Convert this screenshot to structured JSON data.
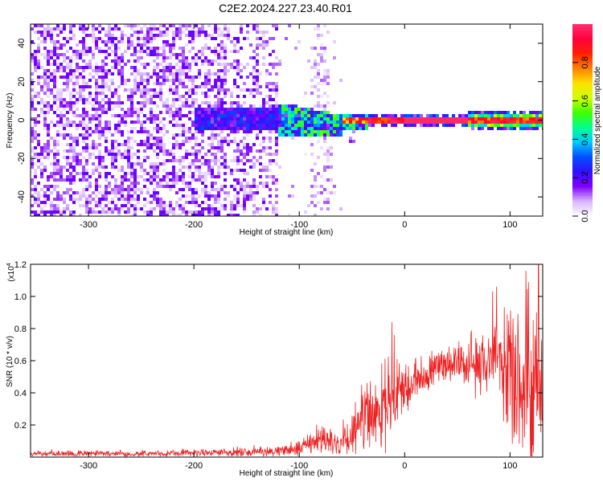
{
  "title": "C2E2.2024.227.23.40.R01",
  "chart_data": [
    {
      "type": "heatmap",
      "title": "C2E2.2024.227.23.40.R01",
      "xlabel": "Height of straight line (km)",
      "ylabel": "Frequency (Hz)",
      "xlim": [
        -355,
        131
      ],
      "ylim": [
        -50,
        50
      ],
      "xticks": [
        -300,
        -200,
        -100,
        0,
        100
      ],
      "xtick_labels": [
        "-300",
        "-200",
        "-100",
        "0",
        "100"
      ],
      "yticks": [
        -40,
        -20,
        0,
        20,
        40
      ],
      "ytick_labels": [
        "-40",
        "-20",
        "0",
        "20",
        "40"
      ],
      "colorbar": {
        "label": "Normalized spectral amplitude",
        "range": [
          0,
          1
        ],
        "ticks": [
          0.0,
          0.2,
          0.4,
          0.6,
          0.8
        ],
        "tick_labels": [
          "0.0",
          "0.2",
          "0.4",
          "0.6",
          "0.8"
        ],
        "colors": [
          "#ffffff",
          "#d8b4ff",
          "#8000ff",
          "#3010ff",
          "#0050ff",
          "#00c8ff",
          "#00ff90",
          "#40ff00",
          "#d0ff00",
          "#ffe000",
          "#ff8000",
          "#ff2000",
          "#ff0040",
          "#ff3070"
        ]
      },
      "notes": "Broadband noise across -50..50 Hz for heights below -60 km; narrow band near 0 Hz from -60 km to 131 km with peak amplitude ~1.0 between 0 and 60 km."
    },
    {
      "type": "line",
      "xlabel": "Height of straight line (km)",
      "ylabel": "SNR (10 * v/v)",
      "scale_label": "(x10",
      "scale_exponent": "4",
      "xlim": [
        -355,
        131
      ],
      "ylim": [
        0,
        1.2
      ],
      "xticks": [
        -300,
        -200,
        -100,
        0,
        100
      ],
      "xtick_labels": [
        "-300",
        "-200",
        "-100",
        "0",
        "100"
      ],
      "yticks": [
        0.2,
        0.4,
        0.6,
        0.8,
        1.0,
        1.2
      ],
      "ytick_labels": [
        "0.2",
        "0.4",
        "0.6",
        "0.8",
        "1.0",
        "1.2"
      ],
      "color": "#ee2222",
      "envelope": {
        "x": [
          -355,
          -300,
          -250,
          -200,
          -150,
          -120,
          -100,
          -85,
          -75,
          -65,
          -55,
          -45,
          -38,
          -30,
          -20,
          -12,
          -5,
          5,
          15,
          25,
          40,
          50,
          60,
          70,
          80,
          90,
          100,
          110,
          120,
          131
        ],
        "mean": [
          0.02,
          0.02,
          0.02,
          0.025,
          0.03,
          0.04,
          0.05,
          0.1,
          0.12,
          0.09,
          0.1,
          0.18,
          0.22,
          0.25,
          0.3,
          0.33,
          0.38,
          0.45,
          0.5,
          0.54,
          0.57,
          0.58,
          0.58,
          0.58,
          0.58,
          0.57,
          0.55,
          0.5,
          0.45,
          0.4
        ],
        "noise": [
          0.01,
          0.01,
          0.01,
          0.012,
          0.015,
          0.02,
          0.025,
          0.05,
          0.05,
          0.04,
          0.06,
          0.1,
          0.12,
          0.13,
          0.14,
          0.12,
          0.1,
          0.08,
          0.06,
          0.06,
          0.06,
          0.07,
          0.08,
          0.1,
          0.15,
          0.2,
          0.25,
          0.3,
          0.35,
          0.35
        ]
      },
      "spikes": [
        {
          "x": -12,
          "y": 0.84
        },
        {
          "x": -10,
          "y": 0.76
        },
        {
          "x": 115,
          "y": 1.16
        },
        {
          "x": 127,
          "y": 1.2
        }
      ]
    }
  ]
}
